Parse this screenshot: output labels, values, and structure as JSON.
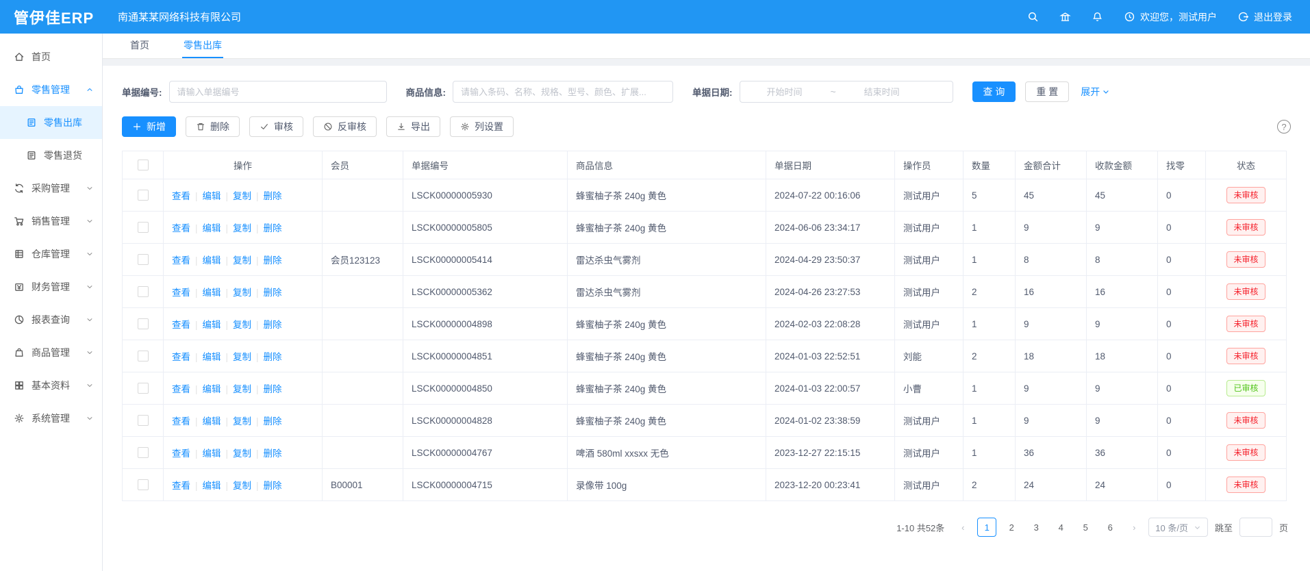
{
  "colors": {
    "primary": "#1890ff",
    "topbar": "#2196f3",
    "status_red": "#f5222d",
    "status_green": "#52c41a"
  },
  "header": {
    "logo": "管伊佳ERP",
    "company": "南通某某网络科技有限公司",
    "welcome": "欢迎您，测试用户",
    "logout": "退出登录",
    "icons": {
      "search": "search-icon",
      "bank": "bank-icon",
      "bell": "bell-icon",
      "welcome": "clock-icon",
      "logout": "logout-icon"
    }
  },
  "sidebar": {
    "items": [
      {
        "label": "首页",
        "icon": "home-icon",
        "type": "item"
      },
      {
        "label": "零售管理",
        "icon": "retail-icon",
        "type": "group",
        "expanded": true
      },
      {
        "label": "零售出库",
        "icon": "doc-icon",
        "type": "child",
        "active": true
      },
      {
        "label": "零售退货",
        "icon": "doc-icon",
        "type": "child"
      },
      {
        "label": "采购管理",
        "icon": "sync-icon",
        "type": "group"
      },
      {
        "label": "销售管理",
        "icon": "cart-icon",
        "type": "group"
      },
      {
        "label": "仓库管理",
        "icon": "warehouse-icon",
        "type": "group"
      },
      {
        "label": "财务管理",
        "icon": "finance-icon",
        "type": "group"
      },
      {
        "label": "报表查询",
        "icon": "pie-icon",
        "type": "group"
      },
      {
        "label": "商品管理",
        "icon": "bag-icon",
        "type": "group"
      },
      {
        "label": "基本资料",
        "icon": "grid-icon",
        "type": "group"
      },
      {
        "label": "系统管理",
        "icon": "gear-icon",
        "type": "group"
      }
    ]
  },
  "tabs": [
    {
      "label": "首页",
      "active": false
    },
    {
      "label": "零售出库",
      "active": true
    }
  ],
  "filters": {
    "bill_no_label": "单据编号:",
    "bill_no_placeholder": "请输入单据编号",
    "product_label": "商品信息:",
    "product_placeholder": "请输入条码、名称、规格、型号、颜色、扩展...",
    "date_label": "单据日期:",
    "date_start_placeholder": "开始时间",
    "date_separator": "~",
    "date_end_placeholder": "结束时间",
    "search_button": "查 询",
    "reset_button": "重 置",
    "expand_link": "展开"
  },
  "toolbar": {
    "buttons": [
      {
        "label": "新增",
        "icon": "plus-icon",
        "primary": true
      },
      {
        "label": "删除",
        "icon": "trash-icon",
        "primary": false
      },
      {
        "label": "审核",
        "icon": "check-icon",
        "primary": false
      },
      {
        "label": "反审核",
        "icon": "ban-icon",
        "primary": false
      },
      {
        "label": "导出",
        "icon": "download-icon",
        "primary": false
      },
      {
        "label": "列设置",
        "icon": "gear-icon",
        "primary": false
      }
    ]
  },
  "table": {
    "headers": [
      "操作",
      "会员",
      "单据编号",
      "商品信息",
      "单据日期",
      "操作员",
      "数量",
      "金额合计",
      "收款金额",
      "找零",
      "状态"
    ],
    "row_actions": [
      "查看",
      "编辑",
      "复制",
      "删除"
    ],
    "rows": [
      {
        "member": "",
        "bill_no": "LSCK00000005930",
        "product": "蜂蜜柚子茶 240g 黄色",
        "date": "2024-07-22 00:16:06",
        "operator": "测试用户",
        "qty": "5",
        "amount": "45",
        "received": "45",
        "change": "0",
        "status": "未审核",
        "status_type": "red"
      },
      {
        "member": "",
        "bill_no": "LSCK00000005805",
        "product": "蜂蜜柚子茶 240g 黄色",
        "date": "2024-06-06 23:34:17",
        "operator": "测试用户",
        "qty": "1",
        "amount": "9",
        "received": "9",
        "change": "0",
        "status": "未审核",
        "status_type": "red"
      },
      {
        "member": "会员123123",
        "bill_no": "LSCK00000005414",
        "product": "雷达杀虫气雾剂",
        "date": "2024-04-29 23:50:37",
        "operator": "测试用户",
        "qty": "1",
        "amount": "8",
        "received": "8",
        "change": "0",
        "status": "未审核",
        "status_type": "red"
      },
      {
        "member": "",
        "bill_no": "LSCK00000005362",
        "product": "雷达杀虫气雾剂",
        "date": "2024-04-26 23:27:53",
        "operator": "测试用户",
        "qty": "2",
        "amount": "16",
        "received": "16",
        "change": "0",
        "status": "未审核",
        "status_type": "red"
      },
      {
        "member": "",
        "bill_no": "LSCK00000004898",
        "product": "蜂蜜柚子茶 240g 黄色",
        "date": "2024-02-03 22:08:28",
        "operator": "测试用户",
        "qty": "1",
        "amount": "9",
        "received": "9",
        "change": "0",
        "status": "未审核",
        "status_type": "red"
      },
      {
        "member": "",
        "bill_no": "LSCK00000004851",
        "product": "蜂蜜柚子茶 240g 黄色",
        "date": "2024-01-03 22:52:51",
        "operator": "刘能",
        "qty": "2",
        "amount": "18",
        "received": "18",
        "change": "0",
        "status": "未审核",
        "status_type": "red"
      },
      {
        "member": "",
        "bill_no": "LSCK00000004850",
        "product": "蜂蜜柚子茶 240g 黄色",
        "date": "2024-01-03 22:00:57",
        "operator": "小曹",
        "qty": "1",
        "amount": "9",
        "received": "9",
        "change": "0",
        "status": "已审核",
        "status_type": "green"
      },
      {
        "member": "",
        "bill_no": "LSCK00000004828",
        "product": "蜂蜜柚子茶 240g 黄色",
        "date": "2024-01-02 23:38:59",
        "operator": "测试用户",
        "qty": "1",
        "amount": "9",
        "received": "9",
        "change": "0",
        "status": "未审核",
        "status_type": "red"
      },
      {
        "member": "",
        "bill_no": "LSCK00000004767",
        "product": "啤酒 580ml xxsxx 无色",
        "date": "2023-12-27 22:15:15",
        "operator": "测试用户",
        "qty": "1",
        "amount": "36",
        "received": "36",
        "change": "0",
        "status": "未审核",
        "status_type": "red"
      },
      {
        "member": "B00001",
        "bill_no": "LSCK00000004715",
        "product": "录像带 100g",
        "date": "2023-12-20 00:23:41",
        "operator": "测试用户",
        "qty": "2",
        "amount": "24",
        "received": "24",
        "change": "0",
        "status": "未审核",
        "status_type": "red"
      }
    ]
  },
  "pagination": {
    "total": "1-10 共52条",
    "pages": [
      "1",
      "2",
      "3",
      "4",
      "5",
      "6"
    ],
    "current": "1",
    "page_size": "10 条/页",
    "jump_label": "跳至",
    "jump_suffix": "页"
  }
}
